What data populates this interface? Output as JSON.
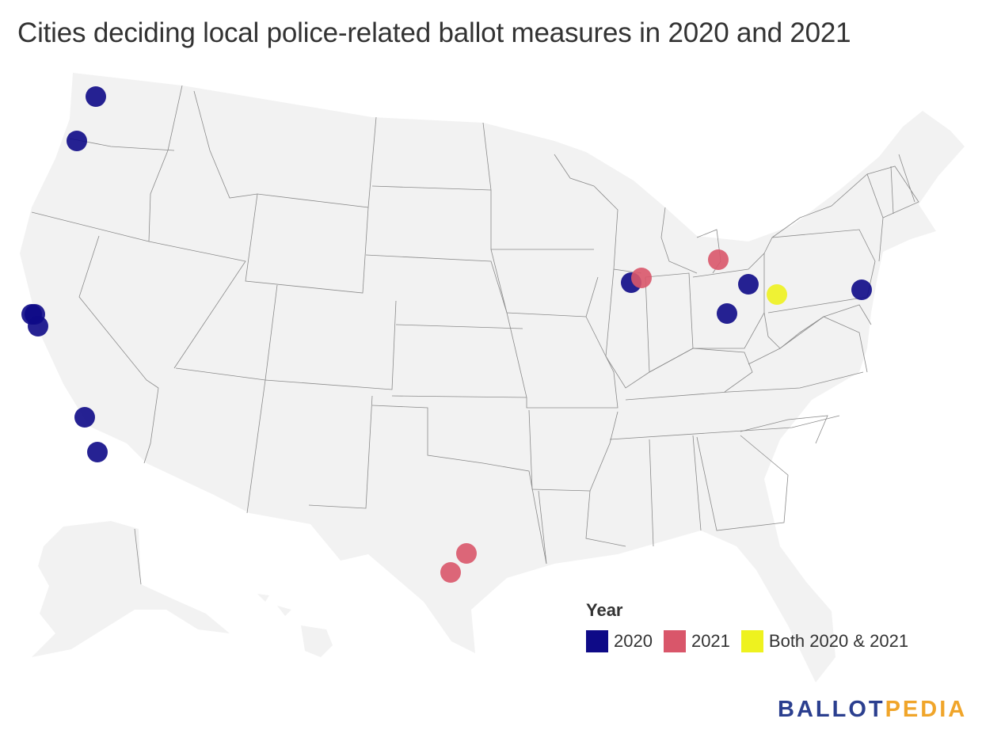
{
  "title": "Cities deciding local police-related ballot measures in 2020 and 2021",
  "legend": {
    "title": "Year",
    "items": [
      {
        "label": "2020",
        "color": "#0e0a87"
      },
      {
        "label": "2021",
        "color": "#d9566a"
      },
      {
        "label": "Both 2020 & 2021",
        "color": "#eef21f"
      }
    ]
  },
  "logo": {
    "part1": "BALLOT",
    "part2": "PEDIA",
    "color1": "#2b3f8f",
    "color2": "#f0a52a"
  },
  "map_style": {
    "land_color": "#f2f2f2",
    "border_color": "#8a8a8a"
  },
  "markers": [
    {
      "category": "2020",
      "region": "Washington"
    },
    {
      "category": "2020",
      "region": "Oregon"
    },
    {
      "category": "2020",
      "region": "California"
    },
    {
      "category": "2020",
      "region": "California"
    },
    {
      "category": "2020",
      "region": "California"
    },
    {
      "category": "2020",
      "region": "California"
    },
    {
      "category": "2020",
      "region": "California"
    },
    {
      "category": "2020",
      "region": "Illinois"
    },
    {
      "category": "2021",
      "region": "Illinois"
    },
    {
      "category": "2021",
      "region": "Michigan"
    },
    {
      "category": "2020",
      "region": "Ohio"
    },
    {
      "category": "2020",
      "region": "Ohio"
    },
    {
      "category": "Both 2020 & 2021",
      "region": "Pennsylvania"
    },
    {
      "category": "2020",
      "region": "Pennsylvania"
    },
    {
      "category": "2021",
      "region": "Texas"
    },
    {
      "category": "2021",
      "region": "Texas"
    }
  ]
}
